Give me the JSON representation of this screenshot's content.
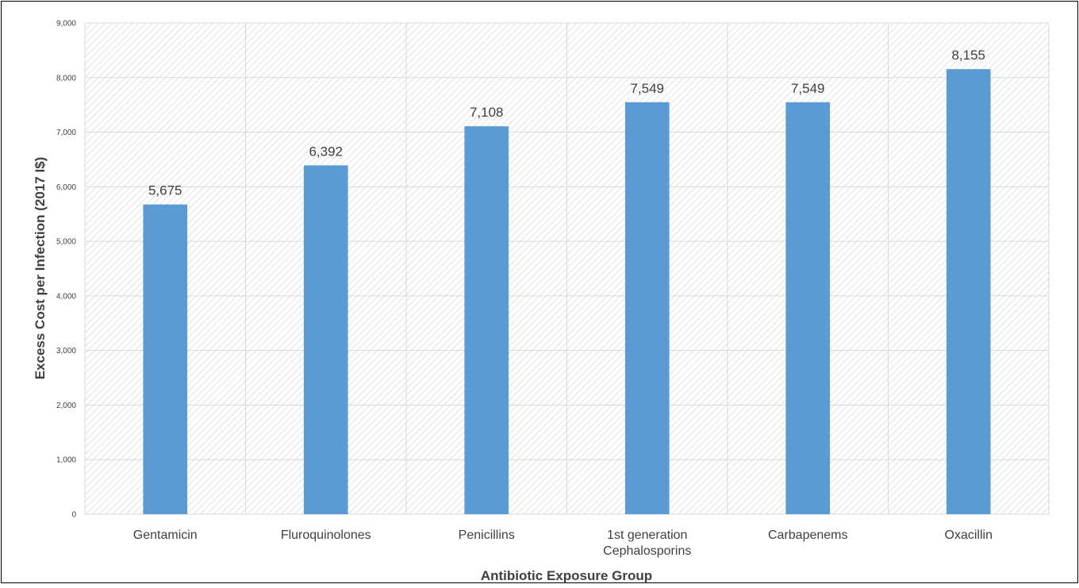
{
  "chart_data": {
    "type": "bar",
    "title": "",
    "xlabel": "Antibiotic Exposure Group",
    "ylabel": "Excess Cost per Infection (2017 I$)",
    "categories": [
      [
        "Gentamicin"
      ],
      [
        "Fluroquinolones"
      ],
      [
        "Penicillins"
      ],
      [
        "1st generation",
        "Cephalosporins"
      ],
      [
        "Carbapenems"
      ],
      [
        "Oxacillin"
      ]
    ],
    "values": [
      5675,
      6392,
      7108,
      7549,
      7549,
      8155
    ],
    "data_labels": [
      "5,675",
      "6,392",
      "7,108",
      "7,549",
      "7,549",
      "8,155"
    ],
    "ylim": [
      0,
      9000
    ],
    "yticks": [
      "0",
      "1,000",
      "2,000",
      "3,000",
      "4,000",
      "5,000",
      "6,000",
      "7,000",
      "8,000",
      "9,000"
    ],
    "grid": true,
    "legend": "none",
    "colors": {
      "bar": "#5b9bd5",
      "grid": "#d9d9d9",
      "hatch": "#e6e6e6",
      "text": "#404040",
      "frame": "#000000"
    }
  }
}
